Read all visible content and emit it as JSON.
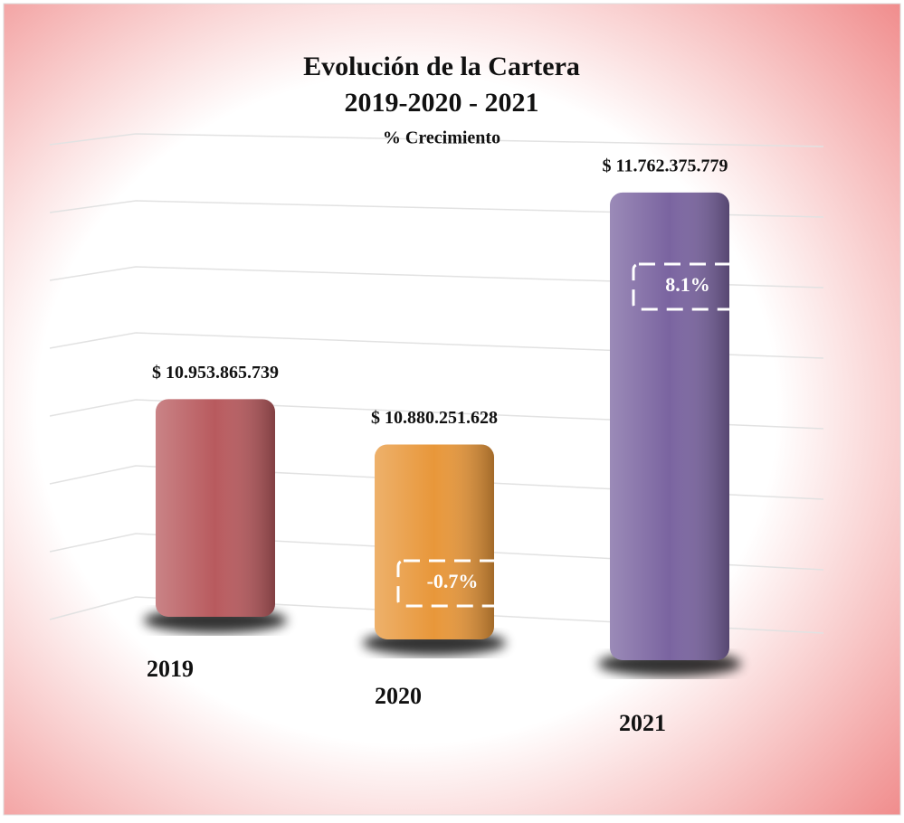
{
  "chart_data": {
    "type": "bar",
    "title": "Evolución de la Cartera",
    "subtitle": "2019-2020 - 2021",
    "annotation": "% Crecimiento",
    "categories": [
      "2019",
      "2020",
      "2021"
    ],
    "values": [
      10953865739,
      10880251628,
      11762375779
    ],
    "value_labels": [
      "$ 10.953.865.739",
      "$ 10.880.251.628",
      "$ 11.762.375.779"
    ],
    "colors": [
      "#b85a5e",
      "#e8973a",
      "#7a64a0"
    ],
    "growth": [
      null,
      -0.7,
      8.1
    ],
    "growth_labels": [
      null,
      "-0.7%",
      "8.1%"
    ],
    "ylim": [
      10250000000,
      11800000000
    ],
    "grid": true
  }
}
